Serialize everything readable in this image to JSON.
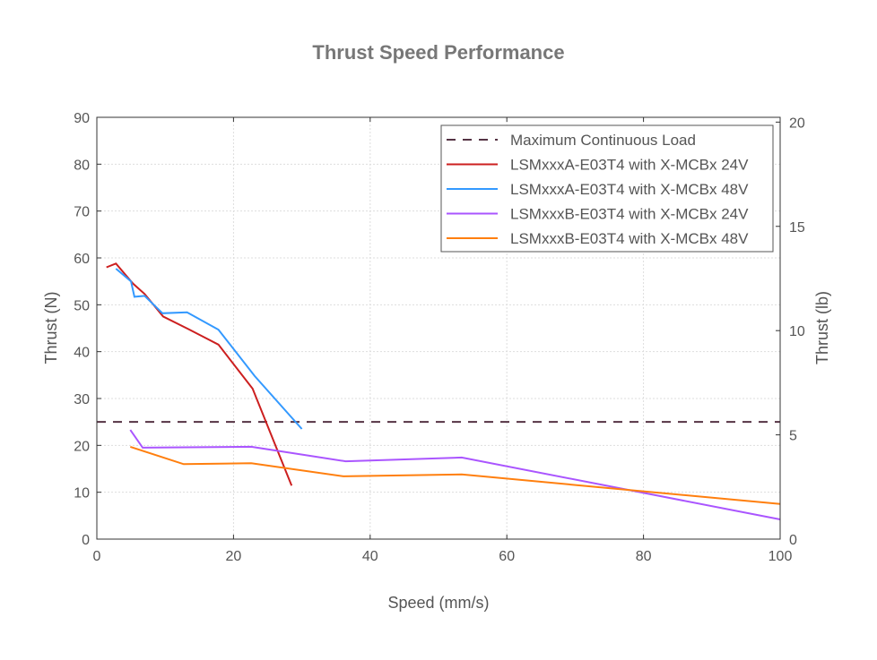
{
  "chart_data": {
    "type": "line",
    "title": "Thrust Speed Performance",
    "xlabel": "Speed (mm/s)",
    "ylabel": "Thrust (N)",
    "y2label": "Thrust (lb)",
    "xlim": [
      0,
      100
    ],
    "ylim": [
      0,
      90
    ],
    "y2lim": [
      0,
      20.23
    ],
    "xticks": [
      0,
      20,
      40,
      60,
      80,
      100
    ],
    "yticks": [
      0,
      10,
      20,
      30,
      40,
      50,
      60,
      70,
      80,
      90
    ],
    "y2ticks": [
      0,
      5,
      10,
      15,
      20
    ],
    "grid": true,
    "legend_position": "top-right",
    "reference_line": {
      "name": "Maximum Continuous Load",
      "y": 25,
      "color": "#553344",
      "style": "dashed"
    },
    "series": [
      {
        "name": "LSMxxxA-E03T4 with X-MCBx 24V",
        "color": "#cc1f1f",
        "x": [
          1.4,
          2.8,
          5.3,
          7.0,
          9.7,
          13.4,
          17.8,
          22.8,
          28.5
        ],
        "y": [
          58.0,
          58.8,
          54.5,
          52.3,
          47.5,
          44.8,
          41.5,
          32.1,
          11.4
        ]
      },
      {
        "name": "LSMxxxA-E03T4 with X-MCBx 48V",
        "color": "#3399ff",
        "x": [
          2.8,
          5.0,
          5.5,
          7.0,
          9.6,
          13.2,
          17.8,
          23.1,
          30.0
        ],
        "y": [
          57.7,
          55.0,
          51.7,
          51.9,
          48.2,
          48.4,
          44.7,
          34.8,
          23.5
        ]
      },
      {
        "name": "LSMxxxB-E03T4 with X-MCBx 24V",
        "color": "#aa55ff",
        "x": [
          4.9,
          6.7,
          22.6,
          36.4,
          53.4,
          100
        ],
        "y": [
          23.3,
          19.5,
          19.7,
          16.6,
          17.4,
          4.2
        ]
      },
      {
        "name": "LSMxxxB-E03T4 with X-MCBx 48V",
        "color": "#ff7f0e",
        "x": [
          4.9,
          12.7,
          22.6,
          36.1,
          53.4,
          100
        ],
        "y": [
          19.7,
          16.0,
          16.2,
          13.4,
          13.8,
          7.5
        ]
      }
    ]
  }
}
